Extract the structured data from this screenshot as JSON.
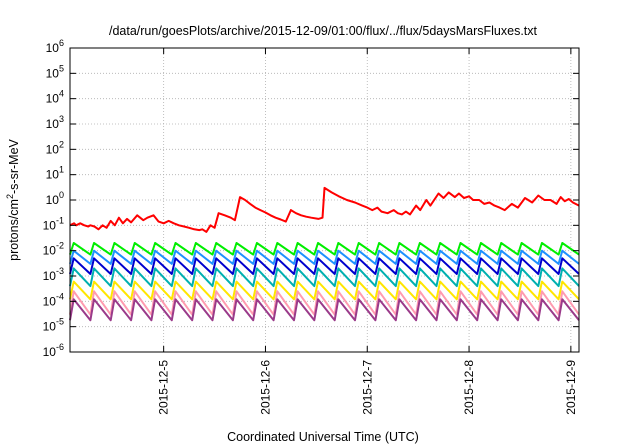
{
  "chart_data": {
    "type": "line",
    "title": "/data/run/goesPlots/archive/2015-12-09/01:00/flux/../flux/5daysMarsFluxes.txt",
    "xlabel": "Coordinated Universal Time (UTC)",
    "ylabel_parts": [
      "protons/cm",
      "2",
      "-s-sr-MeV"
    ],
    "y_scale": "log",
    "ylim": [
      1e-06,
      1000000.0
    ],
    "xlim": [
      -0.92,
      4.08
    ],
    "y_ticks": [
      {
        "base": "10",
        "exp": "-6",
        "value": -6
      },
      {
        "base": "10",
        "exp": "-5",
        "value": -5
      },
      {
        "base": "10",
        "exp": "-4",
        "value": -4
      },
      {
        "base": "10",
        "exp": "-3",
        "value": -3
      },
      {
        "base": "10",
        "exp": "-2",
        "value": -2
      },
      {
        "base": "10",
        "exp": "-1",
        "value": -1
      },
      {
        "base": "10",
        "exp": "0",
        "value": 0
      },
      {
        "base": "10",
        "exp": "1",
        "value": 1
      },
      {
        "base": "10",
        "exp": "2",
        "value": 2
      },
      {
        "base": "10",
        "exp": "3",
        "value": 3
      },
      {
        "base": "10",
        "exp": "4",
        "value": 4
      },
      {
        "base": "10",
        "exp": "5",
        "value": 5
      },
      {
        "base": "10",
        "exp": "6",
        "value": 6
      }
    ],
    "x_ticks": [
      {
        "label": "2015-12-5",
        "value": 0
      },
      {
        "label": "2015-12-6",
        "value": 1
      },
      {
        "label": "2015-12-7",
        "value": 2
      },
      {
        "label": "2015-12-8",
        "value": 3
      },
      {
        "label": "2015-12-9",
        "value": 4
      }
    ],
    "grid": true,
    "series": [
      {
        "color": "#ff0000",
        "points": [
          [
            -0.92,
            0.1
          ],
          [
            -0.88,
            0.12
          ],
          [
            -0.86,
            0.1
          ],
          [
            -0.82,
            0.12
          ],
          [
            -0.78,
            0.1
          ],
          [
            -0.74,
            0.09
          ],
          [
            -0.72,
            0.1
          ],
          [
            -0.68,
            0.09
          ],
          [
            -0.64,
            0.07
          ],
          [
            -0.6,
            0.1
          ],
          [
            -0.56,
            0.08
          ],
          [
            -0.52,
            0.15
          ],
          [
            -0.48,
            0.1
          ],
          [
            -0.44,
            0.2
          ],
          [
            -0.4,
            0.12
          ],
          [
            -0.36,
            0.18
          ],
          [
            -0.32,
            0.13
          ],
          [
            -0.26,
            0.25
          ],
          [
            -0.2,
            0.16
          ],
          [
            -0.16,
            0.2
          ],
          [
            -0.1,
            0.25
          ],
          [
            -0.05,
            0.14
          ],
          [
            0.0,
            0.12
          ],
          [
            0.05,
            0.15
          ],
          [
            0.1,
            0.12
          ],
          [
            0.15,
            0.1
          ],
          [
            0.2,
            0.09
          ],
          [
            0.25,
            0.08
          ],
          [
            0.3,
            0.07
          ],
          [
            0.35,
            0.065
          ],
          [
            0.38,
            0.07
          ],
          [
            0.42,
            0.055
          ],
          [
            0.46,
            0.1
          ],
          [
            0.5,
            0.08
          ],
          [
            0.54,
            0.3
          ],
          [
            0.6,
            0.25
          ],
          [
            0.66,
            0.2
          ],
          [
            0.7,
            0.16
          ],
          [
            0.75,
            1.3
          ],
          [
            0.8,
            1.0
          ],
          [
            0.85,
            0.7
          ],
          [
            0.9,
            0.5
          ],
          [
            0.95,
            0.4
          ],
          [
            1.0,
            0.32
          ],
          [
            1.05,
            0.25
          ],
          [
            1.1,
            0.2
          ],
          [
            1.15,
            0.17
          ],
          [
            1.2,
            0.14
          ],
          [
            1.25,
            0.4
          ],
          [
            1.3,
            0.3
          ],
          [
            1.35,
            0.25
          ],
          [
            1.4,
            0.22
          ],
          [
            1.45,
            0.2
          ],
          [
            1.52,
            0.18
          ],
          [
            1.56,
            0.2
          ],
          [
            1.58,
            3.0
          ],
          [
            1.65,
            2.0
          ],
          [
            1.72,
            1.4
          ],
          [
            1.8,
            1.0
          ],
          [
            1.88,
            0.8
          ],
          [
            1.95,
            0.6
          ],
          [
            2.0,
            0.5
          ],
          [
            2.05,
            0.4
          ],
          [
            2.1,
            0.5
          ],
          [
            2.14,
            0.35
          ],
          [
            2.2,
            0.3
          ],
          [
            2.26,
            0.4
          ],
          [
            2.3,
            0.3
          ],
          [
            2.34,
            0.27
          ],
          [
            2.38,
            0.35
          ],
          [
            2.42,
            0.27
          ],
          [
            2.48,
            0.6
          ],
          [
            2.52,
            0.4
          ],
          [
            2.58,
            1.0
          ],
          [
            2.62,
            0.6
          ],
          [
            2.7,
            1.8
          ],
          [
            2.75,
            1.2
          ],
          [
            2.8,
            2.0
          ],
          [
            2.86,
            1.3
          ],
          [
            2.9,
            1.8
          ],
          [
            2.95,
            1.2
          ],
          [
            3.0,
            1.4
          ],
          [
            3.04,
            1.0
          ],
          [
            3.1,
            1.0
          ],
          [
            3.15,
            0.7
          ],
          [
            3.2,
            0.8
          ],
          [
            3.25,
            0.6
          ],
          [
            3.3,
            0.5
          ],
          [
            3.35,
            0.4
          ],
          [
            3.42,
            0.7
          ],
          [
            3.48,
            0.5
          ],
          [
            3.55,
            1.2
          ],
          [
            3.62,
            0.8
          ],
          [
            3.68,
            1.5
          ],
          [
            3.74,
            1.0
          ],
          [
            3.8,
            1.0
          ],
          [
            3.86,
            0.7
          ],
          [
            3.9,
            1.3
          ],
          [
            3.94,
            0.9
          ],
          [
            3.98,
            1.1
          ],
          [
            4.02,
            0.8
          ],
          [
            4.08,
            0.6
          ]
        ]
      },
      {
        "color": "#00ee00",
        "pattern": {
          "start": -0.92,
          "end": 4.08,
          "period": 0.2,
          "high": 0.02,
          "low": 0.007
        }
      },
      {
        "color": "#1e90ff",
        "pattern": {
          "start": -0.92,
          "end": 4.08,
          "period": 0.2,
          "high": 0.01,
          "low": 0.003
        }
      },
      {
        "color": "#0000cd",
        "pattern": {
          "start": -0.92,
          "end": 4.08,
          "period": 0.2,
          "high": 0.005,
          "low": 0.0012
        }
      },
      {
        "color": "#00b0b0",
        "pattern": {
          "start": -0.92,
          "end": 4.08,
          "period": 0.2,
          "high": 0.002,
          "low": 0.0004
        }
      },
      {
        "color": "#ffe600",
        "pattern": {
          "start": -0.92,
          "end": 4.08,
          "period": 0.2,
          "high": 0.0006,
          "low": 0.00012
        }
      },
      {
        "color": "#ff9bb0",
        "pattern": {
          "start": -0.92,
          "end": 4.08,
          "period": 0.2,
          "high": 0.00025,
          "low": 3e-05
        }
      },
      {
        "color": "#9a3a8a",
        "pattern": {
          "start": -0.92,
          "end": 4.08,
          "period": 0.2,
          "high": 0.00012,
          "low": 1.8e-05
        }
      }
    ]
  }
}
